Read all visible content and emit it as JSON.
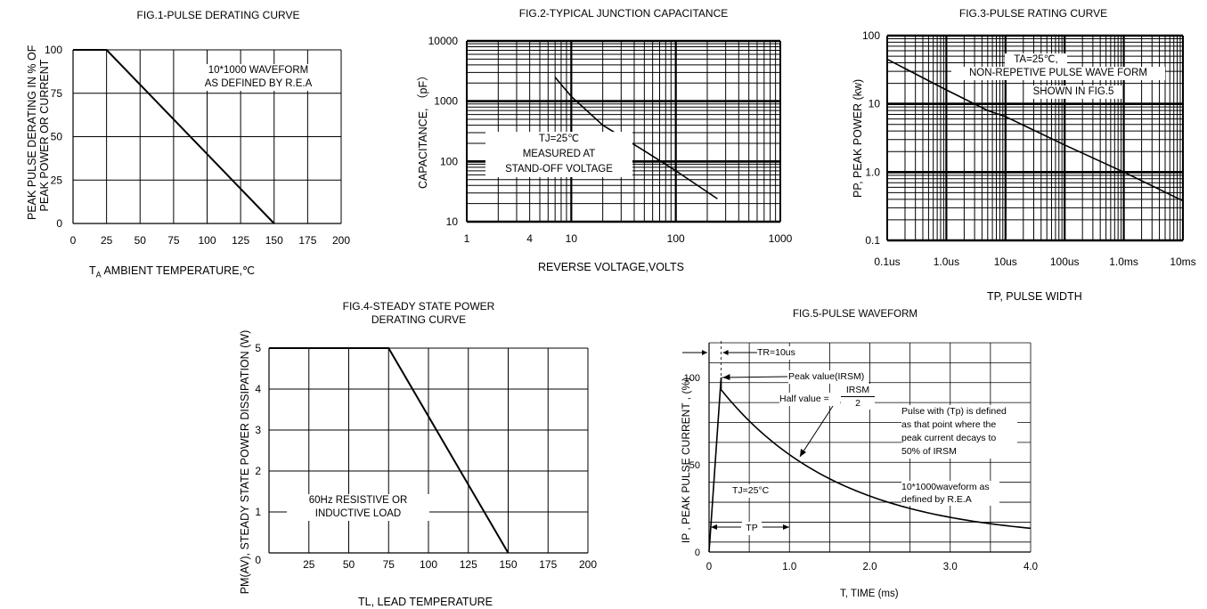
{
  "fig1": {
    "title": "FIG.1-PULSE  DERATING CURVE",
    "ylabel_line1": "PEAK PULSE DERATING IN % OF",
    "ylabel_line2": "PEAK POWER OR CURRENT",
    "xlabel_sub": "A",
    "xlabel_prefix": "T",
    "xlabel_rest": " AMBIENT TEMPERATURE,℃",
    "note_line1": "10*1000 WAVEFORM",
    "note_line2": "AS DEFINED BY R.E.A"
  },
  "fig2": {
    "title": "FIG.2-TYPICAL JUNCTION CAPACITANCE",
    "ylabel": "CAPACITANCE, （pF）",
    "xlabel": "REVERSE VOLTAGE,VOLTS",
    "note_line1": "TJ=25℃",
    "note_line2": "MEASURED AT",
    "note_line3": "STAND-OFF VOLTAGE"
  },
  "fig3": {
    "title": "FIG.3-PULSE RATING  CURVE",
    "ylabel": "PP, PEAK POWER (kw)",
    "xlabel": "TP, PULSE WIDTH",
    "note_line1": "TA=25℃,",
    "note_line2": "NON-REPETIVE PULSE WAVE FORM",
    "note_line3": "SHOWN IN FIG.5"
  },
  "fig4": {
    "title_line1": "FIG.4-STEADY STATE POWER",
    "title_line2": "DERATING CURVE",
    "ylabel": "PM(AV), STEADY STATE POWER DISSIPATION (W)",
    "xlabel": "TL,  LEAD TEMPERATURE",
    "note_line1": "60Hz RESISTIVE OR",
    "note_line2": "INDUCTIVE LOAD"
  },
  "fig5": {
    "title": "FIG.5-PULSE WAVEFORM",
    "ylabel": "IP ,  PEAK PULSE CURRENT   ,    (%)",
    "xlabel": "T, TIME (ms)",
    "tr_label": "TR=10us",
    "peak_label": "Peak value(IRSM)",
    "half_label": "Half value  =",
    "half_num": "IRSM",
    "half_den": "2",
    "def_line1": "Pulse with (Tp) is defined",
    "def_line2": "as that point where the",
    "def_line3": "peak current decays to",
    "def_line4": "50% of  IRSM",
    "tj_label": "TJ=25°C",
    "wave_line1": "10*1000waveform as",
    "wave_line2": "defined by R.E.A",
    "tp_label": "TP"
  },
  "chart_data": [
    {
      "type": "line",
      "title": "FIG.1-PULSE  DERATING CURVE",
      "xlabel": "TA AMBIENT TEMPERATURE,℃",
      "ylabel": "PEAK PULSE DERATING IN % OF PEAK POWER OR CURRENT",
      "xlim": [
        0,
        200
      ],
      "ylim": [
        0,
        100
      ],
      "grid": true,
      "x_ticks": [
        "0",
        "25",
        "50",
        "75",
        "100",
        "125",
        "150",
        "175",
        "200"
      ],
      "y_ticks": [
        "0",
        "25",
        "50",
        "75",
        "100"
      ],
      "series": [
        {
          "x": [
            0,
            25,
            150
          ],
          "y": [
            100,
            100,
            0
          ]
        }
      ]
    },
    {
      "type": "line",
      "title": "FIG.2-TYPICAL JUNCTION CAPACITANCE",
      "xlabel": "REVERSE VOLTAGE,VOLTS",
      "ylabel": "CAPACITANCE, (pF)",
      "xscale": "log",
      "yscale": "log",
      "xlim": [
        1,
        1000
      ],
      "ylim": [
        10,
        10000
      ],
      "grid": true,
      "x_ticks": [
        "1",
        "4",
        "10",
        "100",
        "1000"
      ],
      "y_ticks": [
        "10",
        "100",
        "1000",
        "10000"
      ],
      "series": [
        {
          "x": [
            7,
            10,
            20,
            50,
            100,
            250
          ],
          "y": [
            2500,
            1200,
            400,
            150,
            70,
            24
          ]
        }
      ]
    },
    {
      "type": "line",
      "title": "FIG.3-PULSE RATING  CURVE",
      "xlabel": "TP, PULSE WIDTH",
      "ylabel": "PP, PEAK POWER (kw)",
      "xscale": "log",
      "yscale": "log",
      "xlim": [
        "0.1us",
        "10ms"
      ],
      "ylim": [
        0.1,
        100
      ],
      "grid": true,
      "x_ticks": [
        "0.1us",
        "1.0us",
        "10us",
        "100us",
        "1.0ms",
        "10ms"
      ],
      "y_ticks": [
        "0.1",
        "1.0",
        "10",
        "100"
      ],
      "series": [
        {
          "x_us": [
            0.1,
            1,
            5,
            10,
            100,
            1000,
            10000
          ],
          "y": [
            45,
            16,
            8,
            6.5,
            2.5,
            1.0,
            0.38
          ]
        }
      ]
    },
    {
      "type": "line",
      "title": "FIG.4-STEADY STATE POWER DERATING CURVE",
      "xlabel": "TL,  LEAD TEMPERATURE",
      "ylabel": "PM(AV), STEADY STATE POWER DISSIPATION (W)",
      "xlim": [
        0,
        200
      ],
      "ylim": [
        0,
        5
      ],
      "grid": true,
      "x_ticks": [
        "0",
        "25",
        "50",
        "75",
        "100",
        "125",
        "150",
        "175",
        "200"
      ],
      "y_ticks": [
        "0",
        "1",
        "2",
        "3",
        "4",
        "5"
      ],
      "series": [
        {
          "x": [
            0,
            75,
            150
          ],
          "y": [
            5,
            5,
            0
          ]
        }
      ]
    },
    {
      "type": "line",
      "title": "FIG.5-PULSE WAVEFORM",
      "xlabel": "T, TIME (ms)",
      "ylabel": "IP , PEAK PULSE CURRENT , (%)",
      "xlim": [
        0,
        4.0
      ],
      "ylim": [
        0,
        100
      ],
      "grid": true,
      "x_ticks": [
        "0",
        "1.0",
        "2.0",
        "3.0",
        "4.0"
      ],
      "y_ticks": [
        "0",
        "50",
        "100"
      ],
      "series": [
        {
          "x": [
            0,
            0.15,
            0.5,
            1.0,
            1.5,
            2.0,
            2.5,
            3.0,
            3.5,
            4.0
          ],
          "y": [
            0,
            100,
            81,
            58,
            41,
            29,
            20,
            14,
            11,
            9
          ]
        }
      ]
    }
  ]
}
